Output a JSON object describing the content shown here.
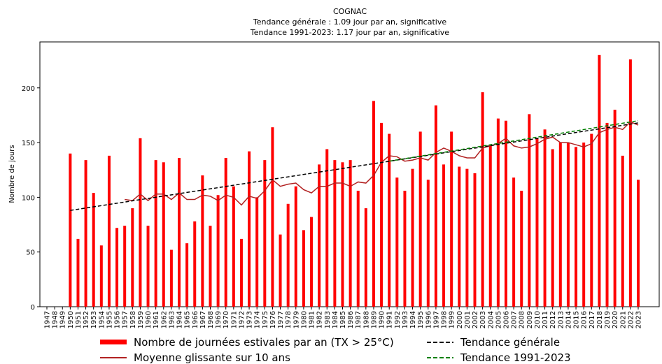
{
  "chart_data": {
    "type": "bar",
    "title": "COGNAC",
    "subtitle": [
      "Tendance générale : 1.09 jour par an, significative",
      "Tendance 1991-2023: 1.17 jour par an, significative"
    ],
    "y_label": "Nombre de jours",
    "ylim": [
      0,
      242
    ],
    "yticks": [
      0,
      50,
      100,
      150,
      200
    ],
    "categories": [
      "1947",
      "1948",
      "1949",
      "1950",
      "1951",
      "1952",
      "1953",
      "1954",
      "1955",
      "1956",
      "1957",
      "1958",
      "1959",
      "1960",
      "1961",
      "1962",
      "1963",
      "1964",
      "1965",
      "1966",
      "1967",
      "1968",
      "1969",
      "1970",
      "1971",
      "1972",
      "1973",
      "1974",
      "1975",
      "1976",
      "1977",
      "1978",
      "1979",
      "1980",
      "1981",
      "1982",
      "1983",
      "1984",
      "1985",
      "1986",
      "1987",
      "1988",
      "1989",
      "1990",
      "1991",
      "1992",
      "1993",
      "1994",
      "1995",
      "1996",
      "1997",
      "1998",
      "1999",
      "2000",
      "2001",
      "2002",
      "2003",
      "2004",
      "2005",
      "2006",
      "2007",
      "2008",
      "2009",
      "2010",
      "2011",
      "2012",
      "2013",
      "2014",
      "2015",
      "2016",
      "2017",
      "2018",
      "2019",
      "2020",
      "2021",
      "2022",
      "2023"
    ],
    "series": [
      {
        "name": "Nombre de journées estivales par an (TX > 25°C)",
        "type": "bar",
        "color": "#ff0000",
        "values": [
          null,
          null,
          null,
          140,
          62,
          134,
          104,
          56,
          138,
          72,
          74,
          90,
          154,
          74,
          134,
          132,
          52,
          136,
          58,
          78,
          120,
          74,
          102,
          136,
          110,
          62,
          142,
          100,
          134,
          164,
          66,
          94,
          110,
          70,
          82,
          130,
          144,
          134,
          132,
          134,
          106,
          90,
          188,
          168,
          158,
          118,
          106,
          126,
          160,
          116,
          184,
          130,
          160,
          128,
          126,
          122,
          196,
          148,
          172,
          170,
          118,
          106,
          176,
          154,
          162,
          144,
          150,
          150,
          146,
          150,
          158,
          230,
          168,
          180,
          138,
          226,
          116
        ]
      },
      {
        "name": "Moyenne glissante sur 10 ans",
        "type": "line",
        "color": "#b22222",
        "linestyle": "solid",
        "values": [
          null,
          null,
          null,
          null,
          null,
          null,
          null,
          null,
          null,
          null,
          98,
          97,
          103,
          97,
          103,
          103,
          98,
          104,
          98,
          98,
          102,
          101,
          97,
          102,
          100,
          93,
          101,
          99,
          106,
          116,
          110,
          112,
          113,
          107,
          104,
          110,
          110,
          113,
          113,
          110,
          114,
          113,
          120,
          132,
          138,
          137,
          133,
          134,
          136,
          134,
          141,
          145,
          142,
          138,
          136,
          136,
          145,
          147,
          149,
          154,
          147,
          145,
          146,
          149,
          153,
          155,
          150,
          150,
          148,
          146,
          149,
          159,
          162,
          164,
          162,
          169,
          166
        ]
      },
      {
        "name": "Tendance générale",
        "type": "line",
        "color": "#000000",
        "linestyle": "dashed",
        "x": [
          "1950",
          "2023"
        ],
        "values": [
          88,
          168
        ]
      },
      {
        "name": "Tendance 1991-2023",
        "type": "line",
        "color": "#008000",
        "linestyle": "dashed",
        "x": [
          "1991",
          "2023"
        ],
        "values": [
          133,
          170
        ]
      }
    ]
  }
}
